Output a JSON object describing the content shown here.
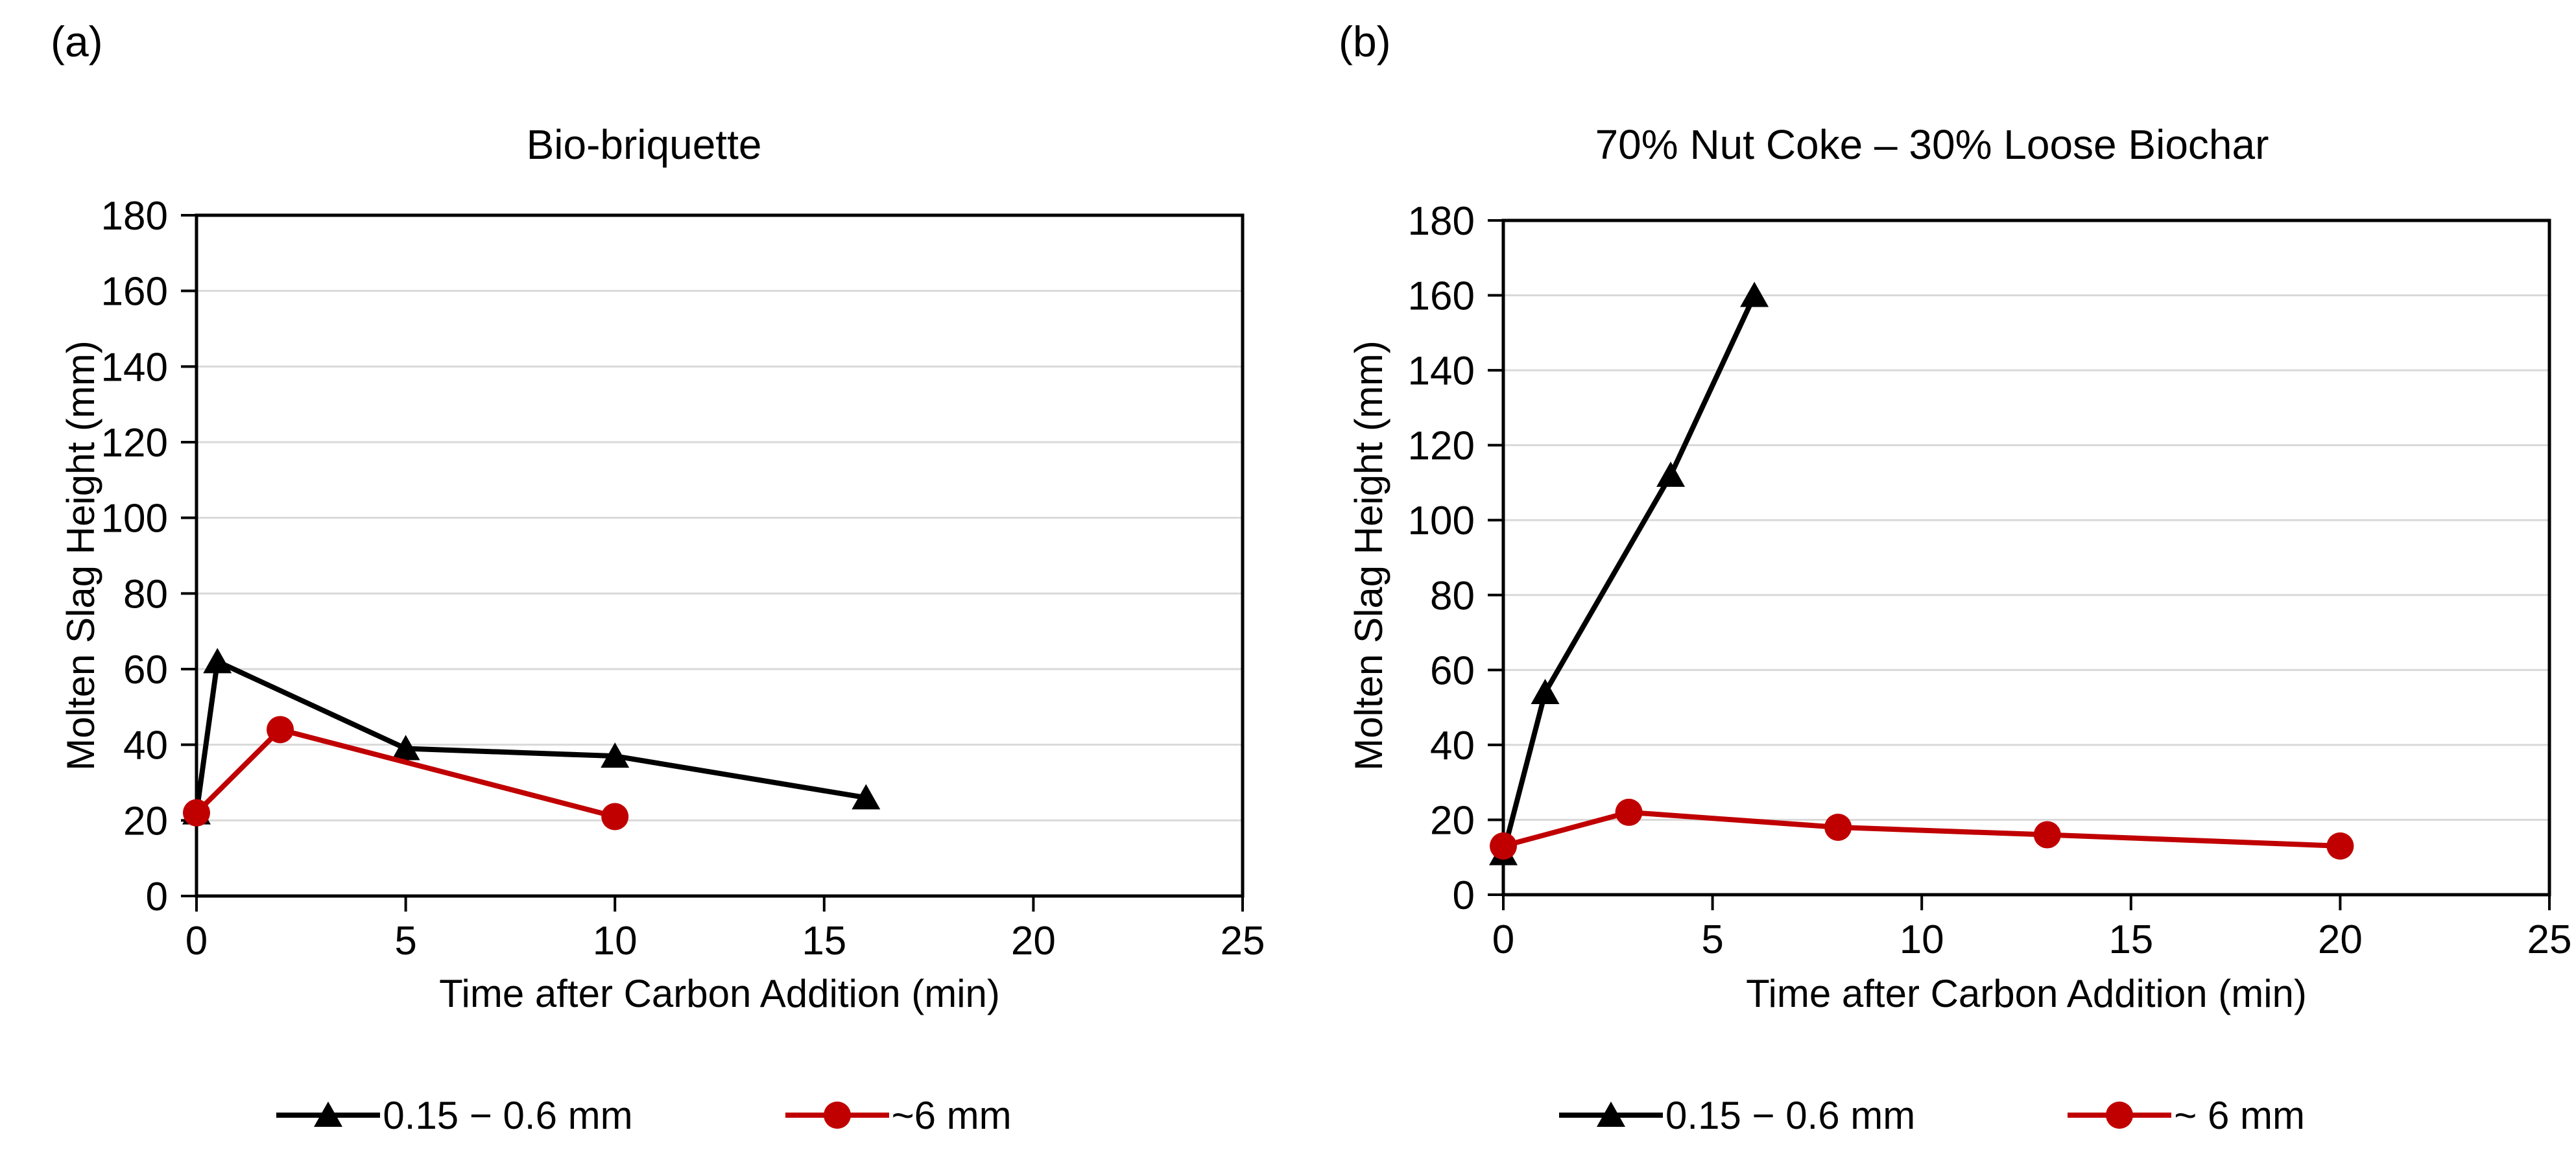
{
  "figure": {
    "panel_labels": [
      "(a)",
      "(b)"
    ]
  },
  "style": {
    "series_black": "#000000",
    "series_red": "#C00000",
    "gridline": "#D9D9D9",
    "axis": "#000000",
    "background": "#FFFFFF"
  },
  "chart_data": [
    {
      "type": "line",
      "panel": "(a)",
      "title": "Bio-briquette",
      "xlabel": "Time after Carbon Addition (min)",
      "ylabel": "Molten Slag Height (mm)",
      "xlim": [
        0,
        25
      ],
      "ylim": [
        0,
        180
      ],
      "xticks": [
        0,
        5,
        10,
        15,
        20,
        25
      ],
      "yticks": [
        0,
        20,
        40,
        60,
        80,
        100,
        120,
        140,
        160,
        180
      ],
      "grid": "horizontal",
      "legend_position": "bottom",
      "series": [
        {
          "name": "0.15 − 0.6 mm",
          "marker": "triangle",
          "color": "#000000",
          "points": [
            [
              0,
              22
            ],
            [
              0.5,
              62
            ],
            [
              5,
              39
            ],
            [
              10,
              37
            ],
            [
              16,
              26
            ]
          ]
        },
        {
          "name": "~6 mm",
          "marker": "circle",
          "color": "#C00000",
          "points": [
            [
              0,
              22
            ],
            [
              2,
              44
            ],
            [
              10,
              21
            ]
          ]
        }
      ]
    },
    {
      "type": "line",
      "panel": "(b)",
      "title": "70% Nut Coke – 30% Loose Biochar",
      "xlabel": "Time after Carbon Addition (min)",
      "ylabel": "Molten Slag Height (mm)",
      "xlim": [
        0,
        25
      ],
      "ylim": [
        0,
        180
      ],
      "xticks": [
        0,
        5,
        10,
        15,
        20,
        25
      ],
      "yticks": [
        0,
        20,
        40,
        60,
        80,
        100,
        120,
        140,
        160,
        180
      ],
      "grid": "horizontal",
      "legend_position": "bottom",
      "series": [
        {
          "name": "0.15 − 0.6 mm",
          "marker": "triangle",
          "color": "#000000",
          "points": [
            [
              0,
              11
            ],
            [
              1,
              54
            ],
            [
              4,
              112
            ],
            [
              6,
              160
            ]
          ]
        },
        {
          "name": "~ 6 mm",
          "marker": "circle",
          "color": "#C00000",
          "points": [
            [
              0,
              13
            ],
            [
              3,
              22
            ],
            [
              8,
              18
            ],
            [
              13,
              16
            ],
            [
              20,
              13
            ]
          ]
        }
      ]
    }
  ]
}
